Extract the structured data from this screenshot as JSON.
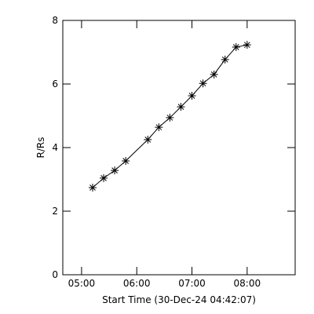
{
  "chart_data": {
    "type": "line",
    "xlabel": "Start Time (30-Dec-24 04:42:07)",
    "ylabel": "R/Rs",
    "x": [
      5.2,
      5.4,
      5.6,
      5.8,
      6.2,
      6.4,
      6.6,
      6.8,
      7.0,
      7.2,
      7.4,
      7.6,
      7.8,
      8.0
    ],
    "series": [
      {
        "color": "#000000",
        "values": [
          2.74,
          3.04,
          3.28,
          3.58,
          4.25,
          4.64,
          4.94,
          5.28,
          5.63,
          6.02,
          6.3,
          6.77,
          7.16,
          7.23
        ]
      }
    ],
    "xlim": [
      4.66,
      8.87
    ],
    "xticks": [
      {
        "value": 5,
        "label": "05:00"
      },
      {
        "value": 6,
        "label": "06:00"
      },
      {
        "value": 7,
        "label": "07:00"
      },
      {
        "value": 8,
        "label": "08:00"
      }
    ],
    "ylim": [
      0,
      8
    ],
    "yticks": [
      0,
      2,
      4,
      6,
      8
    ]
  }
}
